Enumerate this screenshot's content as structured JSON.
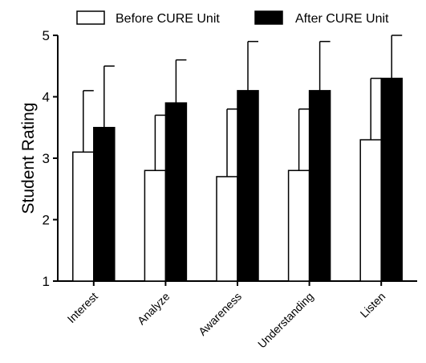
{
  "chart_data": {
    "type": "bar",
    "title": "",
    "xlabel": "",
    "ylabel": "Student Rating",
    "ylim": [
      1,
      5
    ],
    "yticks": [
      1,
      2,
      3,
      4,
      5
    ],
    "categories": [
      "Interest",
      "Analyze",
      "Awareness",
      "Understanding",
      "Listen"
    ],
    "series": [
      {
        "name": "Before CURE Unit",
        "color": "#ffffff",
        "values": [
          3.1,
          2.8,
          2.7,
          2.8,
          3.3
        ],
        "error_upper": [
          4.1,
          3.7,
          3.8,
          3.8,
          4.3
        ]
      },
      {
        "name": "After CURE Unit",
        "color": "#000000",
        "values": [
          3.5,
          3.9,
          4.1,
          4.1,
          4.3
        ],
        "error_upper": [
          4.5,
          4.6,
          4.9,
          4.9,
          5.0
        ]
      }
    ],
    "legend_position": "top",
    "grid": false
  }
}
